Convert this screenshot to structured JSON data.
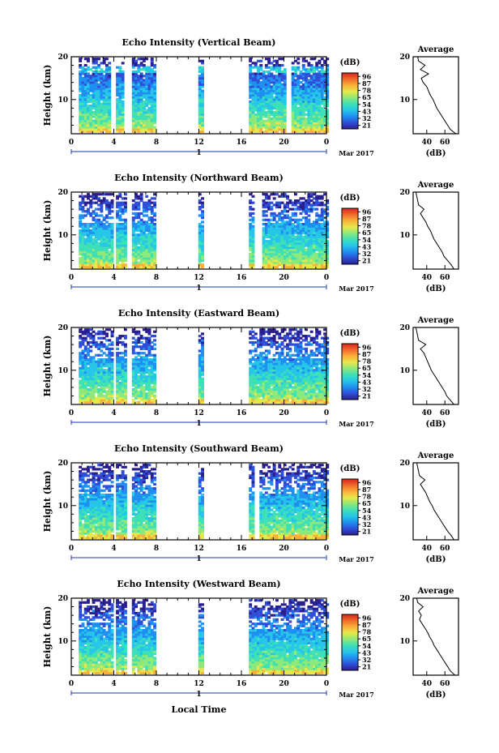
{
  "colors": {
    "colormap": [
      "#2b1f8f",
      "#2f4fd8",
      "#1f8ff0",
      "#26c6e8",
      "#3ee0b8",
      "#8ee87a",
      "#e6e84a",
      "#f9b03a",
      "#f06a2a",
      "#d8261e"
    ],
    "frame": "#000000",
    "timeline": "#1a3aa8"
  },
  "common": {
    "ylabel": "Height (km)",
    "colorbar_label": "(dB)",
    "colorbar_ticks": [
      "96",
      "87",
      "78",
      "65",
      "54",
      "43",
      "32",
      "21"
    ],
    "avg_title": "Average",
    "avg_xlabel": "(dB)",
    "date_label": "Mar 2017",
    "timeline_label": "1",
    "xlabel": "Local Time",
    "x_ticks": [
      "0",
      "4",
      "8",
      "12",
      "16",
      "20",
      "0"
    ]
  },
  "chart_data": [
    {
      "type": "heatmap",
      "title": "Echo Intensity (Vertical Beam)",
      "xlabel": "",
      "ylabel": "Height (km)",
      "x_range_hours": [
        0,
        24
      ],
      "y_range_km": [
        2,
        20
      ],
      "y_ticks": [
        10,
        20
      ],
      "color_range_db": [
        21,
        96
      ],
      "data_gaps_hours": [
        [
          3.7,
          4.1
        ],
        [
          4.9,
          5.5
        ],
        [
          7.9,
          11.9
        ],
        [
          12.3,
          16.7
        ],
        [
          20.0,
          20.6
        ]
      ],
      "profile": {
        "title": "Average",
        "xlabel": "(dB)",
        "x_ticks": [
          40,
          60
        ],
        "xlim": [
          25,
          75
        ],
        "height_km": [
          2,
          3,
          4,
          5,
          6,
          7,
          8,
          9,
          10,
          11,
          12,
          13,
          14,
          15,
          16,
          17,
          18,
          19,
          20
        ],
        "db": [
          72,
          66,
          63,
          60,
          57,
          54,
          51,
          49,
          47,
          44,
          42,
          40,
          36,
          34,
          42,
          33,
          38,
          31,
          30
        ]
      }
    },
    {
      "type": "heatmap",
      "title": "Echo Intensity (Northward Beam)",
      "xlabel": "",
      "ylabel": "Height (km)",
      "x_range_hours": [
        0,
        24
      ],
      "y_range_km": [
        2,
        20
      ],
      "y_ticks": [
        10,
        20
      ],
      "color_range_db": [
        21,
        96
      ],
      "data_gaps_hours": [
        [
          3.8,
          4.2
        ],
        [
          5.0,
          5.5
        ],
        [
          7.9,
          11.9
        ],
        [
          12.3,
          16.7
        ],
        [
          17.2,
          17.8
        ]
      ],
      "profile": {
        "title": "Average",
        "xlabel": "(dB)",
        "x_ticks": [
          40,
          60
        ],
        "xlim": [
          25,
          75
        ],
        "height_km": [
          2,
          3,
          4,
          5,
          6,
          7,
          8,
          9,
          10,
          11,
          12,
          13,
          14,
          15,
          16,
          17,
          18,
          19,
          20
        ],
        "db": [
          70,
          67,
          63,
          59,
          57,
          54,
          51,
          48,
          46,
          44,
          41,
          39,
          36,
          33,
          37,
          31,
          30,
          29,
          28
        ]
      }
    },
    {
      "type": "heatmap",
      "title": "Echo Intensity (Eastward Beam)",
      "xlabel": "",
      "ylabel": "Height (km)",
      "x_range_hours": [
        0,
        24
      ],
      "y_range_km": [
        2,
        20
      ],
      "y_ticks": [
        10,
        20
      ],
      "color_range_db": [
        21,
        96
      ],
      "data_gaps_hours": [
        [
          3.8,
          4.2
        ],
        [
          5.0,
          5.5
        ],
        [
          7.9,
          11.9
        ],
        [
          12.3,
          16.7
        ]
      ],
      "profile": {
        "title": "Average",
        "xlabel": "(dB)",
        "x_ticks": [
          40,
          60
        ],
        "xlim": [
          25,
          75
        ],
        "height_km": [
          2,
          3,
          4,
          5,
          6,
          7,
          8,
          9,
          10,
          11,
          12,
          13,
          14,
          15,
          16,
          17,
          18,
          19,
          20
        ],
        "db": [
          70,
          66,
          62,
          60,
          57,
          54,
          51,
          48,
          45,
          43,
          41,
          39,
          37,
          33,
          39,
          31,
          30,
          29,
          28
        ]
      }
    },
    {
      "type": "heatmap",
      "title": "Echo Intensity (Southward Beam)",
      "xlabel": "",
      "ylabel": "Height (km)",
      "x_range_hours": [
        0,
        24
      ],
      "y_range_km": [
        2,
        20
      ],
      "y_ticks": [
        10,
        20
      ],
      "color_range_db": [
        21,
        96
      ],
      "data_gaps_hours": [
        [
          3.8,
          4.2
        ],
        [
          5.0,
          5.5
        ],
        [
          7.9,
          11.9
        ],
        [
          12.3,
          16.7
        ],
        [
          17.2,
          17.7
        ]
      ],
      "profile": {
        "title": "Average",
        "xlabel": "(dB)",
        "x_ticks": [
          40,
          60
        ],
        "xlim": [
          25,
          75
        ],
        "height_km": [
          2,
          3,
          4,
          5,
          6,
          7,
          8,
          9,
          10,
          11,
          12,
          13,
          14,
          15,
          16,
          17,
          18,
          19,
          20
        ],
        "db": [
          70,
          67,
          63,
          60,
          57,
          54,
          51,
          48,
          46,
          43,
          41,
          39,
          36,
          33,
          38,
          32,
          31,
          30,
          29
        ]
      }
    },
    {
      "type": "heatmap",
      "title": "Echo Intensity (Westward Beam)",
      "xlabel": "",
      "ylabel": "Height (km)",
      "x_range_hours": [
        0,
        24
      ],
      "y_range_km": [
        2,
        20
      ],
      "y_ticks": [
        10,
        20
      ],
      "color_range_db": [
        21,
        96
      ],
      "data_gaps_hours": [
        [
          3.8,
          4.2
        ],
        [
          5.0,
          5.5
        ],
        [
          7.9,
          11.9
        ],
        [
          12.3,
          16.7
        ]
      ],
      "profile": {
        "title": "Average",
        "xlabel": "(dB)",
        "x_ticks": [
          40,
          60
        ],
        "xlim": [
          25,
          75
        ],
        "height_km": [
          2,
          3,
          4,
          5,
          6,
          7,
          8,
          9,
          10,
          11,
          12,
          13,
          14,
          15,
          16,
          17,
          18,
          19,
          20
        ],
        "db": [
          71,
          66,
          63,
          60,
          57,
          54,
          51,
          48,
          46,
          43,
          41,
          38,
          35,
          32,
          34,
          31,
          36,
          30,
          29
        ]
      }
    }
  ]
}
